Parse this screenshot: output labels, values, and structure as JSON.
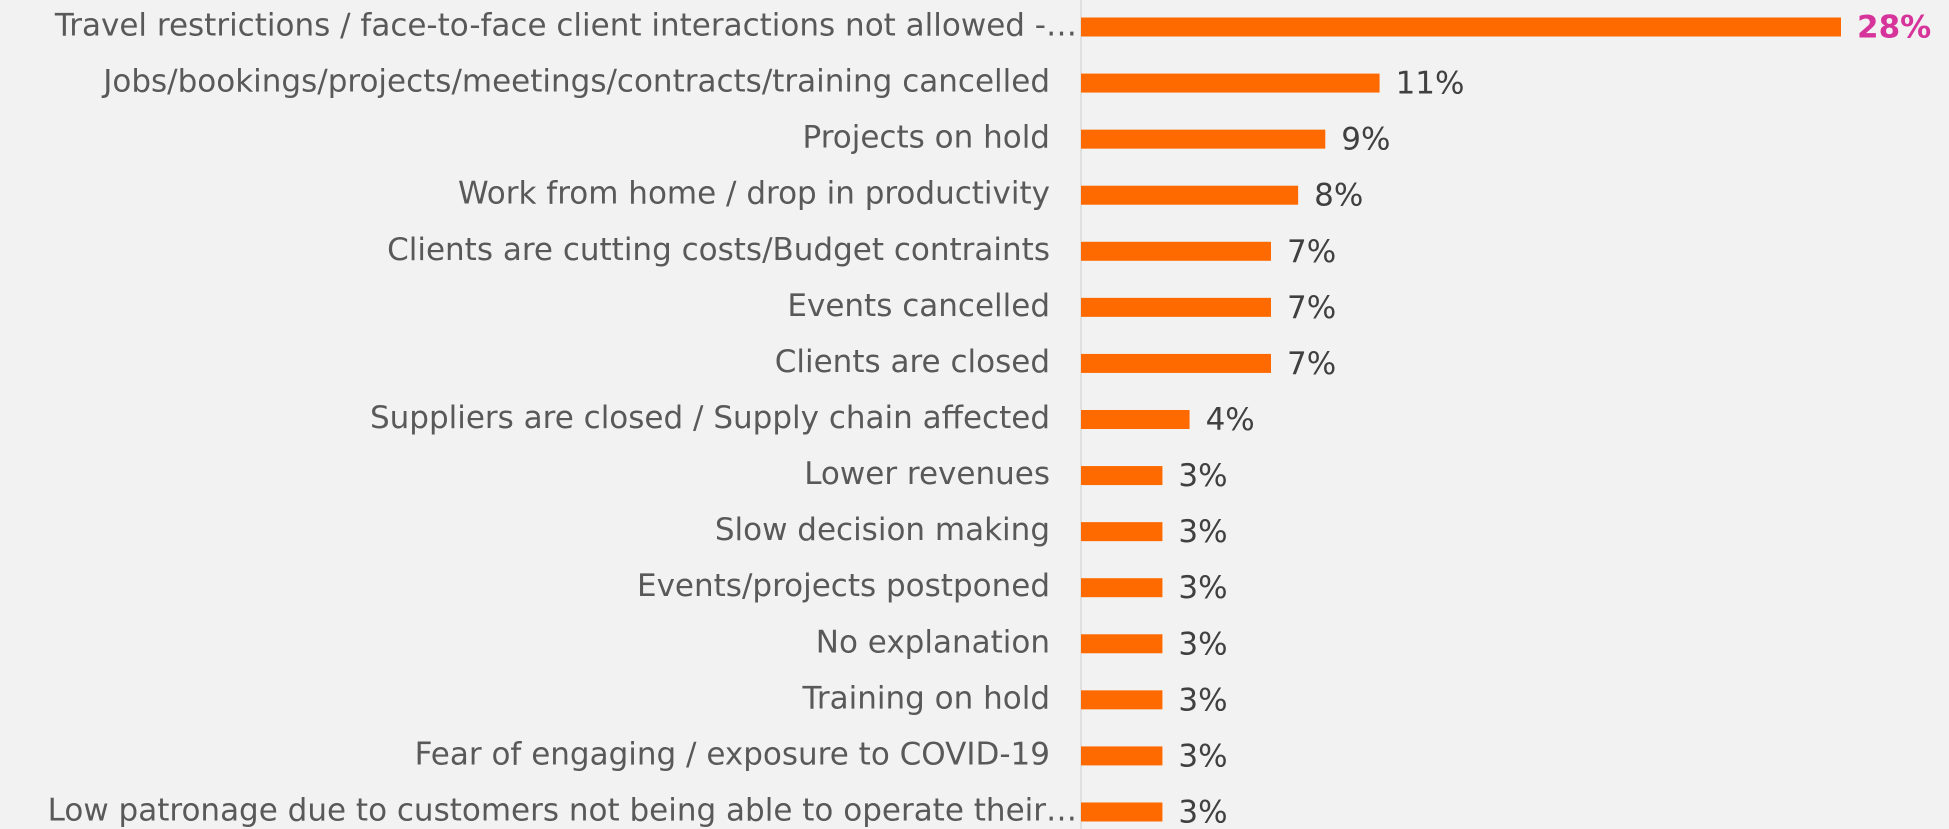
{
  "chart_data": {
    "type": "barh",
    "categories": [
      "Travel restrictions / face-to-face client interactions not allowed -…",
      "Jobs/bookings/projects/meetings/contracts/training cancelled",
      "Projects on hold",
      "Work from home / drop in productivity",
      "Clients are cutting costs/Budget contraints",
      "Events cancelled",
      "Clients are closed",
      "Suppliers are closed / Supply chain affected",
      "Lower revenues",
      "Slow decision making",
      "Events/projects postponed",
      "No explanation",
      "Training on hold",
      "Fear of engaging / exposure to COVID-19",
      "Low patronage due to customers not being able to operate their…"
    ],
    "values": [
      28,
      11,
      9,
      8,
      7,
      7,
      7,
      4,
      3,
      3,
      3,
      3,
      3,
      3,
      3
    ],
    "value_labels": [
      "28%",
      "11%",
      "9%",
      "8%",
      "7%",
      "7%",
      "7%",
      "4%",
      "3%",
      "3%",
      "3%",
      "3%",
      "3%",
      "3%",
      "3%"
    ],
    "value_label_colors": [
      "#d6349a",
      "#404040",
      "#404040",
      "#404040",
      "#404040",
      "#404040",
      "#404040",
      "#404040",
      "#404040",
      "#404040",
      "#404040",
      "#404040",
      "#404040",
      "#404040",
      "#404040"
    ],
    "color": "#ff6a00",
    "xlim": [
      0,
      28
    ]
  }
}
